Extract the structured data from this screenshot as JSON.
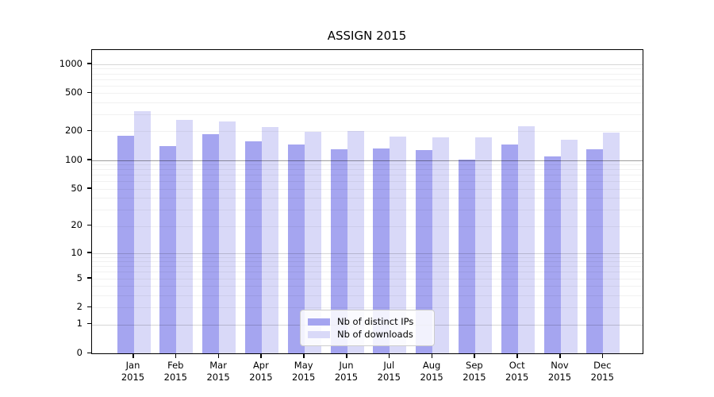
{
  "chart_data": {
    "type": "bar",
    "title": "ASSIGN 2015",
    "categories": [
      "Jan",
      "Feb",
      "Mar",
      "Apr",
      "May",
      "Jun",
      "Jul",
      "Aug",
      "Sep",
      "Oct",
      "Nov",
      "Dec"
    ],
    "x_tick_second_line": "2015",
    "series": [
      {
        "name": "Nb of distinct IPs",
        "color": "#a5a5f0",
        "values": [
          180,
          140,
          187,
          157,
          147,
          131,
          133,
          128,
          102,
          145,
          110,
          130
        ]
      },
      {
        "name": "Nb of downloads",
        "color": "#d9d9f8",
        "values": [
          325,
          262,
          252,
          220,
          198,
          200,
          177,
          172,
          174,
          228,
          163,
          195
        ]
      }
    ],
    "y_ticks": [
      0,
      1,
      2,
      5,
      10,
      20,
      50,
      100,
      200,
      500,
      1000
    ],
    "y_scale": "log1p",
    "ylim": [
      0,
      1400
    ],
    "xlabel": "",
    "ylabel": "",
    "grid": "minor gridlines per log decade, darker line at 100",
    "legend_position": "lower center"
  },
  "colors": {
    "bar_distinct_ips": "#a5a5f0",
    "bar_downloads": "#d9d9f8",
    "spine": "#000000",
    "legend_border": "#cccccc",
    "background": "#ffffff"
  }
}
